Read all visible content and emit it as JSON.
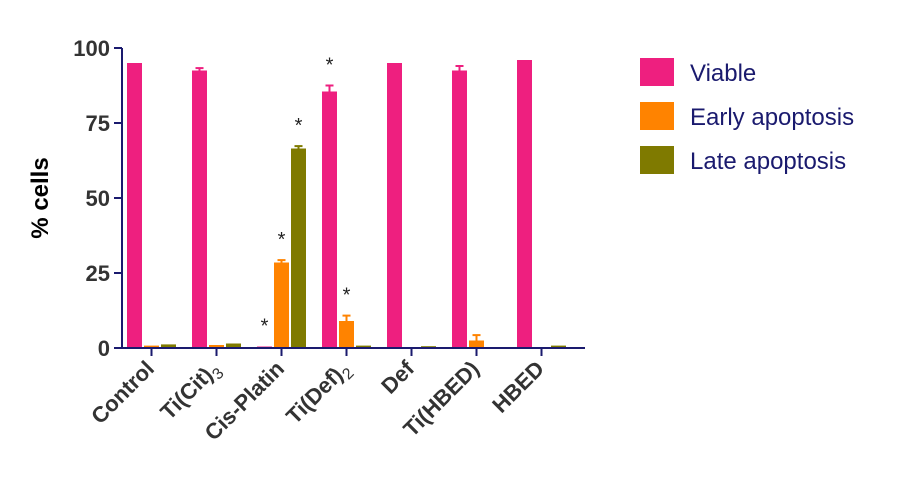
{
  "chart_data": {
    "type": "bar",
    "title": "",
    "xlabel": "",
    "ylabel": "% cells",
    "ylim": [
      0,
      100
    ],
    "yticks": [
      0,
      25,
      50,
      75,
      100
    ],
    "grid": false,
    "legend_position": "right",
    "categories": [
      {
        "base": "Control",
        "sub": ""
      },
      {
        "base": "Ti(Cit)",
        "sub": "3"
      },
      {
        "base": "Cis-Platin",
        "sub": ""
      },
      {
        "base": "Ti(Def)",
        "sub": "2"
      },
      {
        "base": "Def",
        "sub": ""
      },
      {
        "base": "Ti(HBED)",
        "sub": ""
      },
      {
        "base": "HBED",
        "sub": ""
      }
    ],
    "series": [
      {
        "name": "Viable",
        "color": "#ee1f7f",
        "values": [
          95,
          92.5,
          0.5,
          85.5,
          95,
          92.5,
          96
        ],
        "errors": [
          0,
          0.8,
          0,
          2,
          0,
          1.5,
          0
        ],
        "significance": [
          "",
          "",
          "*",
          "*",
          "",
          "",
          ""
        ]
      },
      {
        "name": "Early apoptosis",
        "color": "#ff8300",
        "values": [
          0.8,
          1,
          28.5,
          9,
          0,
          2.5,
          0
        ],
        "errors": [
          0,
          0,
          0.8,
          1.8,
          0,
          1.8,
          0
        ],
        "significance": [
          "",
          "",
          "*",
          "*",
          "",
          "",
          ""
        ]
      },
      {
        "name": "Late apoptosis",
        "color": "#7f7a00",
        "values": [
          1.2,
          1.5,
          66.5,
          0.8,
          0.6,
          0,
          0.8
        ],
        "errors": [
          0,
          0,
          0.8,
          0,
          0,
          0,
          0
        ],
        "significance": [
          "",
          "",
          "*",
          "",
          "",
          "",
          ""
        ]
      }
    ],
    "significance_symbol": "*"
  }
}
